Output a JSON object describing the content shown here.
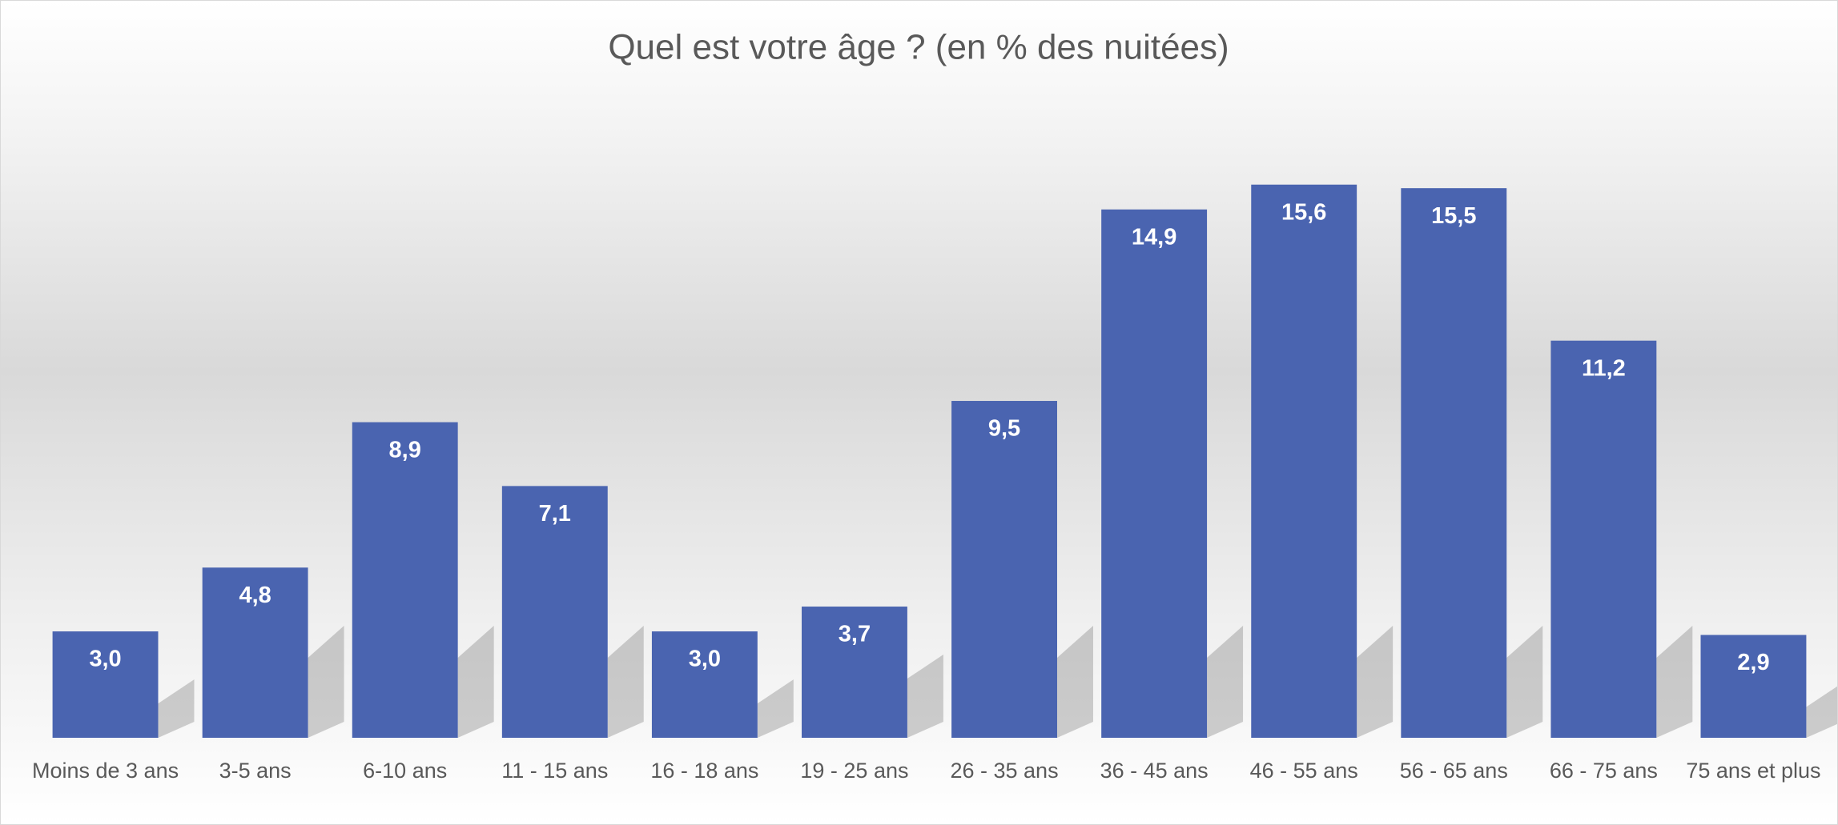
{
  "chart_data": {
    "type": "bar",
    "title": "Quel est votre âge ? (en % des nuitées)",
    "categories": [
      "Moins de 3 ans",
      "3-5 ans",
      "6-10 ans",
      "11 - 15 ans",
      "16 - 18 ans",
      "19 - 25 ans",
      "26 - 35 ans",
      "36 - 45 ans",
      "46 - 55 ans",
      "56 - 65 ans",
      "66 - 75 ans",
      "75 ans et plus"
    ],
    "values": [
      3.0,
      4.8,
      8.9,
      7.1,
      3.0,
      3.7,
      9.5,
      14.9,
      15.6,
      15.5,
      11.2,
      2.9
    ],
    "value_labels": [
      "3,0",
      "4,8",
      "8,9",
      "7,1",
      "3,0",
      "3,7",
      "9,5",
      "14,9",
      "15,6",
      "15,5",
      "11,2",
      "2,9"
    ],
    "color": "#4a64b0",
    "ylim": [
      0,
      16
    ]
  }
}
